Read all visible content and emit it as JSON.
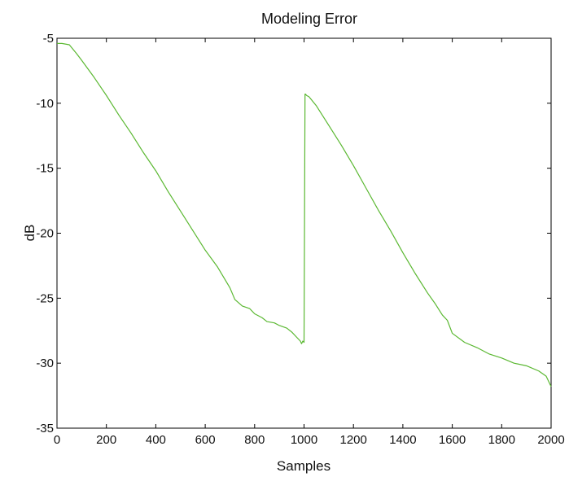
{
  "chart_data": {
    "type": "line",
    "title": "Modeling Error",
    "xlabel": "Samples",
    "ylabel": "dB",
    "xlim": [
      0,
      2000
    ],
    "ylim": [
      -35,
      -5
    ],
    "xticks": [
      0,
      200,
      400,
      600,
      800,
      1000,
      1200,
      1400,
      1600,
      1800,
      2000
    ],
    "yticks": [
      -35,
      -30,
      -25,
      -20,
      -15,
      -10,
      -5
    ],
    "grid": false,
    "legend": "none",
    "colors": {
      "line": "#5bb832",
      "axes": "#000000"
    },
    "series": [
      {
        "x": [
          0,
          20,
          50,
          80,
          100,
          150,
          200,
          250,
          300,
          350,
          400,
          450,
          500,
          550,
          600,
          650,
          700,
          720,
          750,
          780,
          800,
          830,
          850,
          880,
          900,
          930,
          950,
          970,
          985,
          990,
          995,
          1000,
          1002,
          1004,
          1006,
          1010,
          1020,
          1050,
          1100,
          1150,
          1200,
          1250,
          1300,
          1350,
          1400,
          1450,
          1500,
          1530,
          1560,
          1580,
          1600,
          1650,
          1700,
          1750,
          1800,
          1850,
          1900,
          1950,
          1980,
          2000
        ],
        "y": [
          -5.4,
          -5.4,
          -5.5,
          -6.2,
          -6.7,
          -8.0,
          -9.4,
          -10.9,
          -12.3,
          -13.8,
          -15.2,
          -16.8,
          -18.3,
          -19.8,
          -21.3,
          -22.6,
          -24.2,
          -25.1,
          -25.6,
          -25.8,
          -26.2,
          -26.5,
          -26.8,
          -26.9,
          -27.1,
          -27.3,
          -27.6,
          -28.0,
          -28.3,
          -28.5,
          -28.3,
          -28.4,
          -19.0,
          -9.3,
          -9.3,
          -9.4,
          -9.5,
          -10.2,
          -11.7,
          -13.2,
          -14.8,
          -16.5,
          -18.2,
          -19.8,
          -21.5,
          -23.1,
          -24.6,
          -25.4,
          -26.3,
          -26.7,
          -27.7,
          -28.4,
          -28.8,
          -29.3,
          -29.6,
          -30.0,
          -30.2,
          -30.6,
          -31.0,
          -31.8
        ]
      }
    ]
  }
}
